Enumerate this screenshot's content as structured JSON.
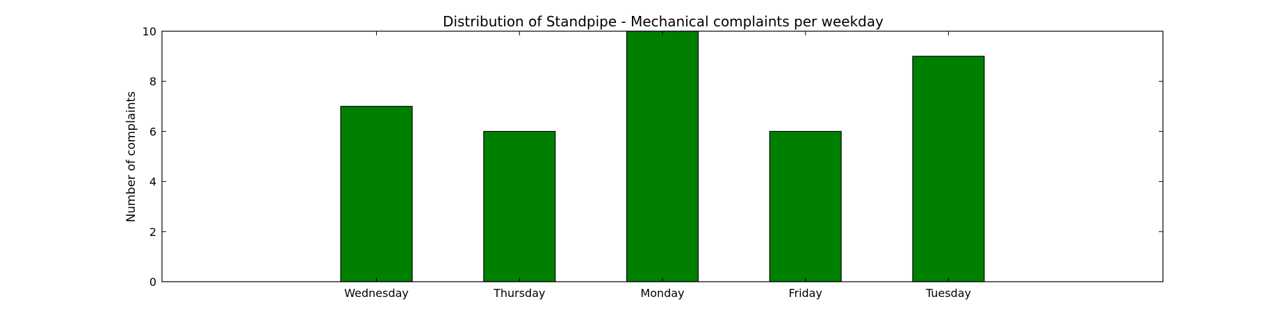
{
  "chart_data": {
    "type": "bar",
    "title": "Distribution of  Standpipe - Mechanical complaints per weekday",
    "xlabel": "",
    "ylabel": "Number of complaints",
    "categories": [
      "Wednesday",
      "Thursday",
      "Monday",
      "Friday",
      "Tuesday"
    ],
    "values": [
      7,
      6,
      10,
      6,
      9
    ],
    "ylim": [
      0,
      10
    ],
    "yticks": [
      0,
      2,
      4,
      6,
      8,
      10
    ],
    "grid": false,
    "bar_color": "#008000",
    "bar_edge_color": "#000000"
  }
}
